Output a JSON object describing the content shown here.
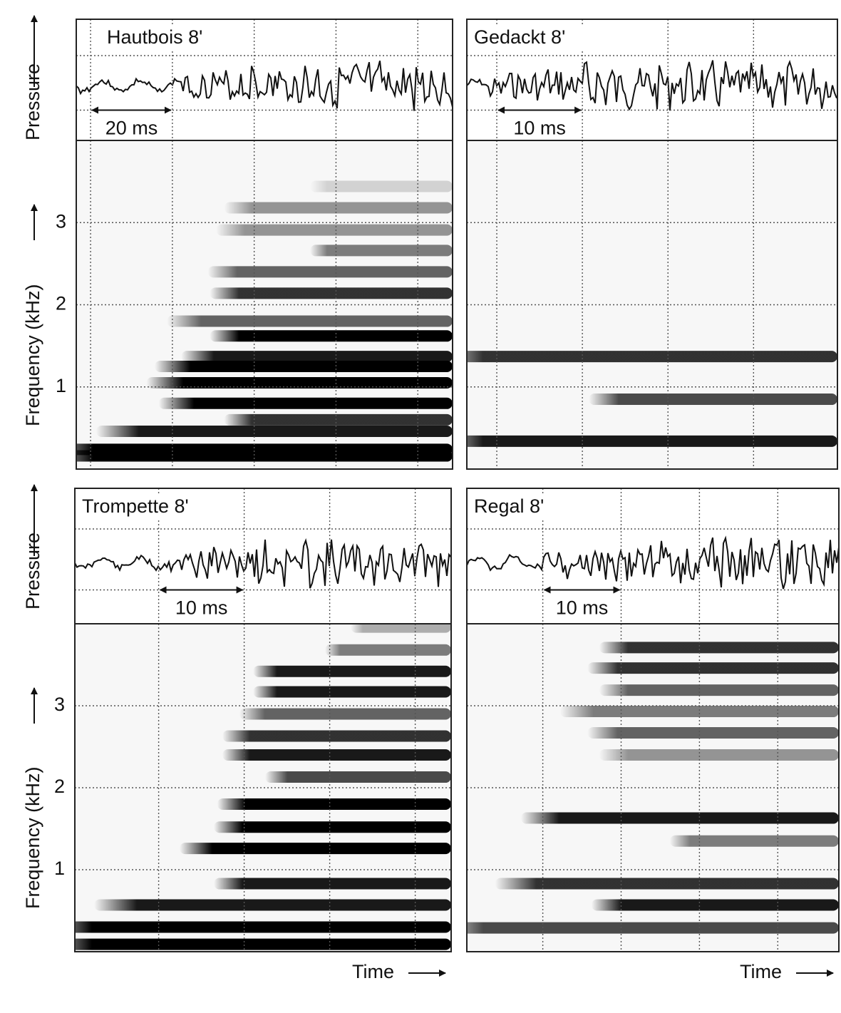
{
  "chart_data": [
    {
      "type": "spectrogram",
      "title": "Hautbois 8'",
      "scale_label": "20 ms",
      "ylabel_top": "Pressure",
      "ylabel": "Frequency (kHz)",
      "xlim": [
        0,
        92
      ],
      "xticks": [
        3.5,
        23.5,
        43.5,
        63.5,
        83.5
      ],
      "ylim": [
        0,
        4
      ],
      "yticks": [
        1,
        2,
        3
      ],
      "tick_labels": true,
      "bands": [
        {
          "freq": 0.16,
          "start": 0,
          "level": 1
        },
        {
          "freq": 0.24,
          "start": 0,
          "level": 1
        },
        {
          "freq": 0.46,
          "start": 12.7,
          "level": 0.9
        },
        {
          "freq": 0.6,
          "start": 44,
          "level": 0.8
        },
        {
          "freq": 0.8,
          "start": 28,
          "level": 1
        },
        {
          "freq": 1.05,
          "start": 25,
          "level": 1
        },
        {
          "freq": 1.25,
          "start": 27,
          "level": 1
        },
        {
          "freq": 1.37,
          "start": 33.5,
          "level": 0.9
        },
        {
          "freq": 1.62,
          "start": 40.5,
          "level": 1
        },
        {
          "freq": 1.8,
          "start": 30,
          "level": 0.6
        },
        {
          "freq": 2.14,
          "start": 40.5,
          "level": 0.8
        },
        {
          "freq": 2.4,
          "start": 40,
          "level": 0.6
        },
        {
          "freq": 2.66,
          "start": 65,
          "level": 0.5
        },
        {
          "freq": 2.91,
          "start": 42,
          "level": 0.4
        },
        {
          "freq": 3.18,
          "start": 44,
          "level": 0.4
        },
        {
          "freq": 3.44,
          "start": 65,
          "level": 0.15
        }
      ]
    },
    {
      "type": "spectrogram",
      "title": "Gedackt 8'",
      "scale_label": "10 ms",
      "xlim": [
        0,
        43.3
      ],
      "xticks": [
        3.5,
        13.5,
        23.5,
        33.5
      ],
      "ylim": [
        0,
        4
      ],
      "yticks": [
        1,
        2,
        3
      ],
      "tick_labels": false,
      "bands": [
        {
          "freq": 0.34,
          "start": 0,
          "level": 0.9
        },
        {
          "freq": 0.85,
          "start": 18,
          "level": 0.7
        },
        {
          "freq": 1.37,
          "start": 0,
          "level": 0.8
        }
      ]
    },
    {
      "type": "spectrogram",
      "title": "Trompette 8'",
      "scale_label": "10 ms",
      "ylabel_top": "Pressure",
      "ylabel": "Frequency (kHz)",
      "xlabel": "Time",
      "xlim": [
        0,
        44
      ],
      "xticks": [
        9.8,
        19.8,
        29.8,
        39.8
      ],
      "ylim": [
        0,
        4
      ],
      "yticks": [
        1,
        2,
        3
      ],
      "tick_labels": true,
      "bands": [
        {
          "freq": 0.09,
          "start": 0,
          "level": 1
        },
        {
          "freq": 0.3,
          "start": 0,
          "level": 1
        },
        {
          "freq": 0.57,
          "start": 6,
          "level": 0.9
        },
        {
          "freq": 0.83,
          "start": 20,
          "level": 0.9
        },
        {
          "freq": 1.26,
          "start": 16,
          "level": 1
        },
        {
          "freq": 1.52,
          "start": 20,
          "level": 1
        },
        {
          "freq": 1.8,
          "start": 20.4,
          "level": 1
        },
        {
          "freq": 2.13,
          "start": 26,
          "level": 0.7
        },
        {
          "freq": 2.4,
          "start": 21,
          "level": 0.9
        },
        {
          "freq": 2.63,
          "start": 21,
          "level": 0.8
        },
        {
          "freq": 2.9,
          "start": 23,
          "level": 0.6
        },
        {
          "freq": 3.17,
          "start": 24.6,
          "level": 0.9
        },
        {
          "freq": 3.42,
          "start": 24.6,
          "level": 0.9
        },
        {
          "freq": 3.68,
          "start": 33,
          "level": 0.5
        },
        {
          "freq": 3.96,
          "start": 36,
          "level": 0.3
        }
      ]
    },
    {
      "type": "spectrogram",
      "title": "Regal 8'",
      "scale_label": "10 ms",
      "xlabel": "Time",
      "xlim": [
        0,
        47.5
      ],
      "xticks": [
        9.7,
        19.7,
        29.7,
        39.7
      ],
      "ylim": [
        0,
        4
      ],
      "yticks": [
        1,
        2,
        3
      ],
      "tick_labels": false,
      "bands": [
        {
          "freq": 0.29,
          "start": 0,
          "level": 0.7
        },
        {
          "freq": 0.57,
          "start": 20,
          "level": 0.9
        },
        {
          "freq": 0.83,
          "start": 7.7,
          "level": 0.8
        },
        {
          "freq": 1.35,
          "start": 30,
          "level": 0.5
        },
        {
          "freq": 1.63,
          "start": 11,
          "level": 0.9
        },
        {
          "freq": 2.4,
          "start": 21,
          "level": 0.4
        },
        {
          "freq": 2.67,
          "start": 19.5,
          "level": 0.6
        },
        {
          "freq": 2.93,
          "start": 16,
          "level": 0.5
        },
        {
          "freq": 3.19,
          "start": 21,
          "level": 0.6
        },
        {
          "freq": 3.46,
          "start": 19.5,
          "level": 0.8
        },
        {
          "freq": 3.71,
          "start": 21,
          "level": 0.8
        }
      ]
    }
  ]
}
